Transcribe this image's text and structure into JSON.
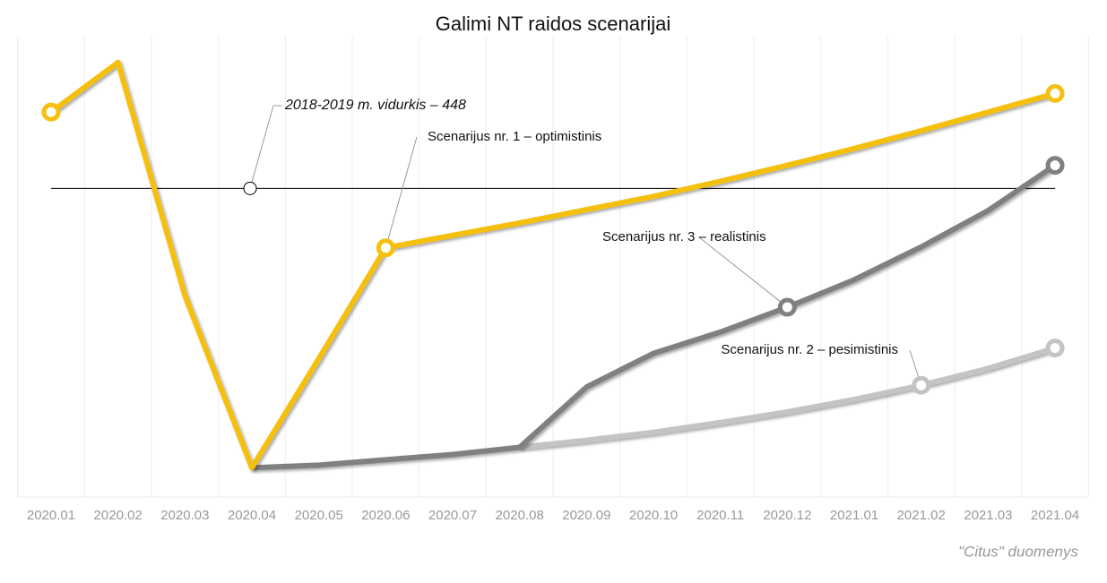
{
  "chart_data": {
    "type": "line",
    "title": "Galimi NT raidos scenarijai",
    "categories": [
      "2020.01",
      "2020.02",
      "2020.03",
      "2020.04",
      "2020.05",
      "2020.06",
      "2020.07",
      "2020.08",
      "2020.09",
      "2020.10",
      "2020.11",
      "2020.12",
      "2021.01",
      "2021.02",
      "2021.03",
      "2021.04"
    ],
    "ylim": [
      100,
      620
    ],
    "reference_line": {
      "value": 448,
      "label": "2018-2019 m. vidurkis – 448"
    },
    "series": [
      {
        "name": "Scenarijus nr. 2 – pesimistinis",
        "color": "#c4c4c4",
        "markers": [
          13,
          15
        ],
        "values": [
          null,
          null,
          null,
          null,
          null,
          null,
          null,
          156,
          164,
          173,
          184,
          196,
          210,
          226,
          245,
          268
        ]
      },
      {
        "name": "Scenarijus nr. 3 – realistinis",
        "color": "#808080",
        "markers": [
          11,
          15
        ],
        "values": [
          null,
          null,
          null,
          133,
          136,
          142,
          148,
          156,
          224,
          262,
          286,
          314,
          345,
          382,
          423,
          474
        ]
      },
      {
        "name": "Scenarijus nr. 1 – optimistinis",
        "color": "#f5c010",
        "markers": [
          0,
          5,
          15
        ],
        "values": [
          534,
          590,
          327,
          133,
          256,
          381,
          395,
          409,
          424,
          439,
          456,
          474,
          493,
          513,
          534,
          555
        ]
      }
    ],
    "source": "\"Citus\" duomenys"
  }
}
